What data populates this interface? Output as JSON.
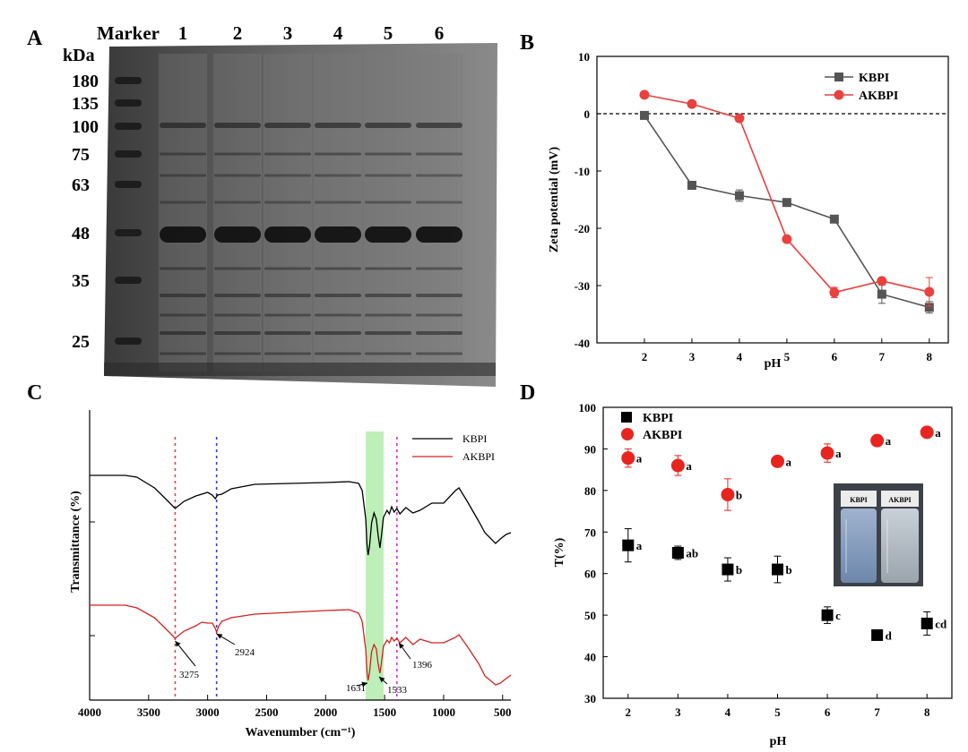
{
  "panels": {
    "A": "A",
    "B": "B",
    "C": "C",
    "D": "D"
  },
  "gel": {
    "marker_label": "Marker",
    "lanes": [
      "1",
      "2",
      "3",
      "4",
      "5",
      "6"
    ],
    "unit": "kDa",
    "markers": [
      "180",
      "135",
      "100",
      "75",
      "63",
      "48",
      "35",
      "25"
    ]
  },
  "chart_data": [
    {
      "id": "B",
      "type": "line",
      "xlabel": "pH",
      "ylabel": "Zeta potential (mV)",
      "xlim": [
        1,
        8.4
      ],
      "ylim": [
        -40,
        10
      ],
      "xticks": [
        "2",
        "3",
        "4",
        "5",
        "6",
        "7",
        "8"
      ],
      "yticks": [
        "10",
        "0",
        "-10",
        "-20",
        "-30",
        "-40"
      ],
      "x": [
        2,
        3,
        4,
        5,
        6,
        7,
        8
      ],
      "reference_line": 0,
      "legend_position": "top-right",
      "series": [
        {
          "name": "KBPI",
          "values": [
            -0.3,
            -12.5,
            -14.3,
            -15.5,
            -18.4,
            -31.5,
            -33.8
          ],
          "errors": [
            0.3,
            0.4,
            1.0,
            0.4,
            0.4,
            1.6,
            1.0
          ],
          "color": "#555555",
          "marker": "square"
        },
        {
          "name": "AKBPI",
          "values": [
            3.3,
            1.7,
            -0.8,
            -21.9,
            -31.2,
            -29.2,
            -31.1
          ],
          "errors": [
            0.3,
            0.3,
            0.3,
            0.4,
            0.9,
            0.5,
            2.5
          ],
          "color": "#e8413e",
          "marker": "circle"
        }
      ]
    },
    {
      "id": "C",
      "type": "line",
      "xlabel": "Wavenumber (cm⁻¹)",
      "ylabel": "Transmittance (%)",
      "xlim": [
        4000,
        430
      ],
      "xticks": [
        "4000",
        "3500",
        "3000",
        "2500",
        "2000",
        "1500",
        "1000",
        "500"
      ],
      "legend_position": "top-right",
      "highlight_band": [
        1650,
        1515
      ],
      "reference_lines": [
        {
          "x": 3275,
          "color": "#e8413e"
        },
        {
          "x": 2924,
          "color": "#3a3ad0"
        },
        {
          "x": 1396,
          "color": "#cc33cc"
        }
      ],
      "annotations": [
        "3275",
        "2924",
        "1631",
        "1533",
        "1396"
      ],
      "series": [
        {
          "name": "KBPI",
          "color": "#000000"
        },
        {
          "name": "AKBPI",
          "color": "#d42020"
        }
      ]
    },
    {
      "id": "D",
      "type": "scatter",
      "xlabel": "pH",
      "ylabel": "T(%)",
      "xlim": [
        1.5,
        8.5
      ],
      "ylim": [
        30,
        100
      ],
      "xticks": [
        "2",
        "3",
        "4",
        "5",
        "6",
        "7",
        "8"
      ],
      "yticks": [
        "100",
        "90",
        "80",
        "70",
        "60",
        "50",
        "40",
        "30"
      ],
      "x": [
        2,
        3,
        4,
        5,
        6,
        7,
        8
      ],
      "legend_position": "top-left",
      "inset_labels": [
        "KBPI",
        "AKBPI"
      ],
      "series": [
        {
          "name": "KBPI",
          "values": [
            66.8,
            65.0,
            61.0,
            61.0,
            50.0,
            45.2,
            48.0
          ],
          "errors": [
            4.0,
            1.6,
            2.8,
            3.2,
            2.0,
            0.5,
            2.8
          ],
          "letters": [
            "a",
            "ab",
            "b",
            "b",
            "c",
            "d",
            "cd"
          ],
          "color": "#000000",
          "marker": "square"
        },
        {
          "name": "AKBPI",
          "values": [
            87.8,
            86.0,
            79.0,
            87.0,
            89.0,
            92.0,
            94.0
          ],
          "errors": [
            2.2,
            2.4,
            3.8,
            1.0,
            2.2,
            1.0,
            0.8
          ],
          "letters": [
            "a",
            "a",
            "b",
            "a",
            "a",
            "a",
            "a"
          ],
          "color": "#e8241f",
          "marker": "circle"
        }
      ]
    }
  ]
}
